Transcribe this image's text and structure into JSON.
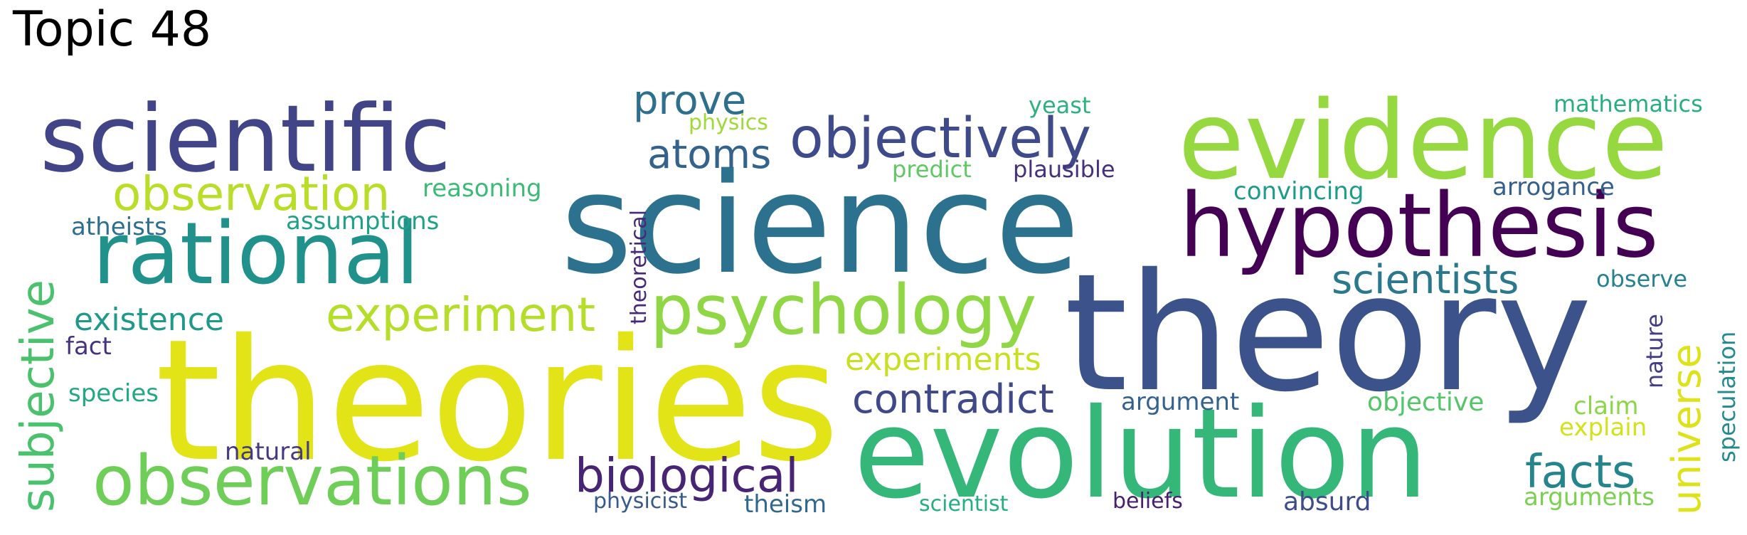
{
  "title": "Topic 48",
  "words": [
    {
      "text": "theories",
      "color": "#e2e418"
    },
    {
      "text": "theory",
      "color": "#3b528b"
    },
    {
      "text": "science",
      "color": "#2c728e"
    },
    {
      "text": "evolution",
      "color": "#35b779"
    },
    {
      "text": "evidence",
      "color": "#95d840"
    },
    {
      "text": "scientific",
      "color": "#414487"
    },
    {
      "text": "hypothesis",
      "color": "#440154"
    },
    {
      "text": "rational",
      "color": "#21918c"
    },
    {
      "text": "observations",
      "color": "#6ece58"
    },
    {
      "text": "psychology",
      "color": "#8fd744"
    },
    {
      "text": "objectively",
      "color": "#3e4a89"
    },
    {
      "text": "experiment",
      "color": "#b5de2b"
    },
    {
      "text": "observation",
      "color": "#b8de29"
    },
    {
      "text": "biological",
      "color": "#482475"
    },
    {
      "text": "subjective",
      "color": "#4ac16d"
    },
    {
      "text": "facts",
      "color": "#25858e"
    },
    {
      "text": "universe",
      "color": "#dde318"
    },
    {
      "text": "contradict",
      "color": "#3f4889"
    },
    {
      "text": "scientists",
      "color": "#2a788e"
    },
    {
      "text": "atoms",
      "color": "#33638d"
    },
    {
      "text": "prove",
      "color": "#2d708e"
    },
    {
      "text": "experiments",
      "color": "#c8e020"
    },
    {
      "text": "existence",
      "color": "#1f9a8a"
    },
    {
      "text": "atheists",
      "color": "#2e6e8e"
    },
    {
      "text": "assumptions",
      "color": "#1fa188"
    },
    {
      "text": "reasoning",
      "color": "#3bbb75"
    },
    {
      "text": "fact",
      "color": "#46327e"
    },
    {
      "text": "species",
      "color": "#22a884"
    },
    {
      "text": "natural",
      "color": "#443983"
    },
    {
      "text": "physicist",
      "color": "#375b8d"
    },
    {
      "text": "theism",
      "color": "#31688e"
    },
    {
      "text": "scientist",
      "color": "#26ad81"
    },
    {
      "text": "beliefs",
      "color": "#481f70"
    },
    {
      "text": "absurd",
      "color": "#3d4d8a"
    },
    {
      "text": "arguments",
      "color": "#7ad151"
    },
    {
      "text": "speculation",
      "color": "#238a8d"
    },
    {
      "text": "nature",
      "color": "#433e85"
    },
    {
      "text": "claim",
      "color": "#8bd646"
    },
    {
      "text": "explain",
      "color": "#d2e21b"
    },
    {
      "text": "objective",
      "color": "#54c568"
    },
    {
      "text": "argument",
      "color": "#34618d"
    },
    {
      "text": "observe",
      "color": "#26828e"
    },
    {
      "text": "arrogance",
      "color": "#355f8d"
    },
    {
      "text": "convincing",
      "color": "#1e9c89"
    },
    {
      "text": "mathematics",
      "color": "#29af7f"
    },
    {
      "text": "yeast",
      "color": "#2db27d"
    },
    {
      "text": "plausible",
      "color": "#46307e"
    },
    {
      "text": "predict",
      "color": "#5ec962"
    },
    {
      "text": "physics",
      "color": "#a0da39"
    },
    {
      "text": "theoretical",
      "color": "#482979"
    }
  ]
}
